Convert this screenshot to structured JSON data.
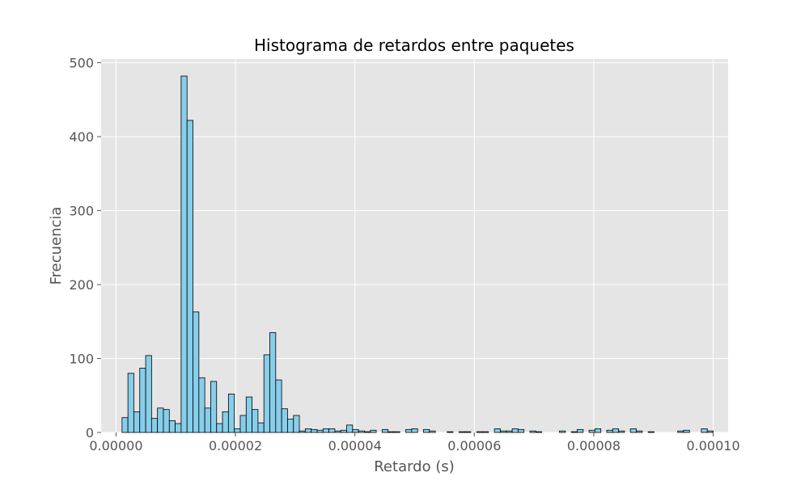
{
  "chart_data": {
    "type": "bar",
    "title": "Histograma de retardos entre paquetes",
    "xlabel": "Retardo (s)",
    "ylabel": "Frecuencia",
    "xlim": [
      -2.5e-06,
      0.0001025
    ],
    "ylim": [
      0,
      505
    ],
    "xticks": [
      0.0,
      2e-05,
      4e-05,
      6e-05,
      8e-05,
      0.0001
    ],
    "xtick_labels": [
      "0.00000",
      "0.00002",
      "0.00004",
      "0.00006",
      "0.00008",
      "0.00010"
    ],
    "yticks": [
      0,
      100,
      200,
      300,
      400,
      500
    ],
    "ytick_labels": [
      "0",
      "100",
      "200",
      "300",
      "400",
      "500"
    ],
    "grid": true,
    "bin_start": 1e-06,
    "bin_width": 9.9e-07,
    "counts": [
      20,
      80,
      28,
      87,
      104,
      19,
      33,
      31,
      16,
      12,
      482,
      422,
      163,
      74,
      33,
      69,
      12,
      28,
      52,
      5,
      23,
      48,
      31,
      13,
      105,
      135,
      71,
      32,
      18,
      23,
      2,
      5,
      4,
      3,
      5,
      5,
      2,
      3,
      10,
      4,
      2,
      1,
      3,
      0,
      4,
      1,
      1,
      0,
      4,
      5,
      0,
      4,
      2,
      0,
      0,
      1,
      0,
      1,
      1,
      0,
      1,
      1,
      0,
      5,
      2,
      2,
      5,
      4,
      0,
      2,
      1,
      0,
      0,
      0,
      2,
      0,
      1,
      4,
      0,
      3,
      5,
      0,
      3,
      5,
      2,
      0,
      5,
      2,
      0,
      1,
      0,
      0,
      0,
      0,
      2,
      3,
      0,
      0,
      5,
      2
    ],
    "colors": {
      "bar_fill": "#87ceeb",
      "bar_edge": "#000000",
      "plot_bg": "#e5e5e5",
      "grid": "#ffffff"
    }
  }
}
